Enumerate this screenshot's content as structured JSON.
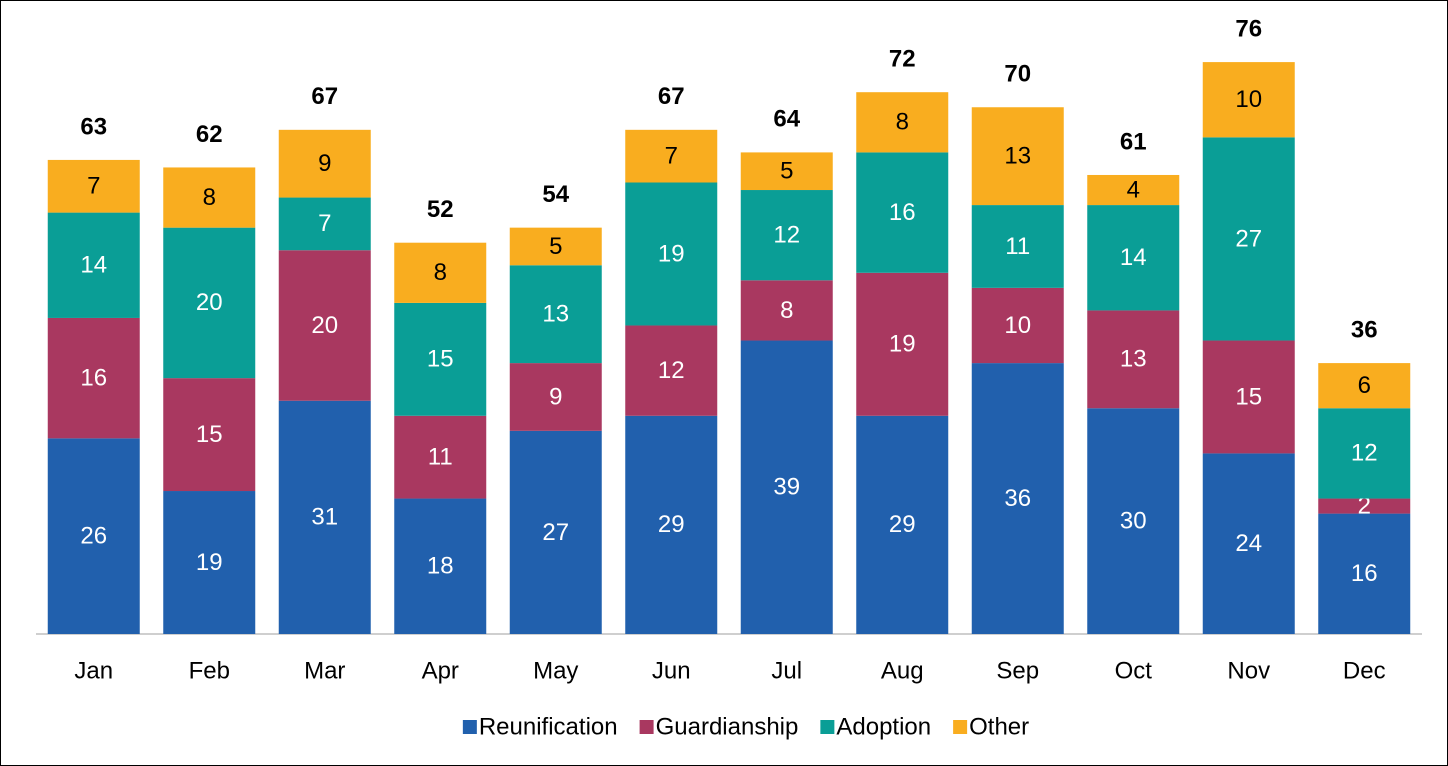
{
  "chart_data": {
    "type": "stacked_bar",
    "categories": [
      "Jan",
      "Feb",
      "Mar",
      "Apr",
      "May",
      "Jun",
      "Jul",
      "Aug",
      "Sep",
      "Oct",
      "Nov",
      "Dec"
    ],
    "series": [
      {
        "name": "Reunification",
        "color": "#2160ad",
        "values": [
          26,
          19,
          31,
          18,
          27,
          29,
          39,
          29,
          36,
          30,
          24,
          16
        ]
      },
      {
        "name": "Guardianship",
        "color": "#a93860",
        "values": [
          16,
          15,
          20,
          11,
          9,
          12,
          8,
          19,
          10,
          13,
          15,
          2
        ]
      },
      {
        "name": "Adoption",
        "color": "#0a9e96",
        "values": [
          14,
          20,
          7,
          15,
          13,
          19,
          12,
          16,
          11,
          14,
          27,
          12
        ]
      },
      {
        "name": "Other",
        "color": "#f9ad1f",
        "values": [
          7,
          8,
          9,
          8,
          5,
          7,
          5,
          8,
          13,
          4,
          10,
          6
        ]
      }
    ],
    "totals": [
      63,
      62,
      67,
      52,
      54,
      67,
      64,
      72,
      70,
      61,
      76,
      36
    ],
    "ylim": [
      0,
      80
    ],
    "legend": "bottom"
  }
}
